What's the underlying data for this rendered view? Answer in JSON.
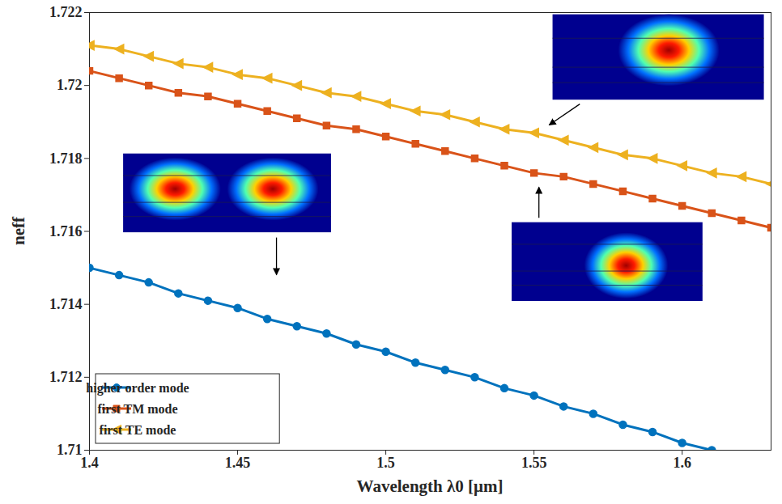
{
  "chart_data": {
    "type": "line",
    "xlabel": "Wavelength λ0 [μm]",
    "ylabel": "neff",
    "x": [
      1.4,
      1.41,
      1.42,
      1.43,
      1.44,
      1.45,
      1.46,
      1.47,
      1.48,
      1.49,
      1.5,
      1.51,
      1.52,
      1.53,
      1.54,
      1.55,
      1.56,
      1.57,
      1.58,
      1.59,
      1.6,
      1.61,
      1.62,
      1.63
    ],
    "xlim": [
      1.4,
      1.63
    ],
    "xticks": [
      1.4,
      1.45,
      1.5,
      1.55,
      1.6
    ],
    "ylim": [
      1.71,
      1.722
    ],
    "yticks": [
      1.71,
      1.712,
      1.714,
      1.716,
      1.718,
      1.72,
      1.722
    ],
    "grid": false,
    "legend": "lower left",
    "series": [
      {
        "name": "higher order mode",
        "color": "#0072BD",
        "marker": "circle",
        "values": [
          1.715,
          1.7148,
          1.7146,
          1.7143,
          1.7141,
          1.7139,
          1.7136,
          1.7134,
          1.7132,
          1.7129,
          1.7127,
          1.7124,
          1.7122,
          1.712,
          1.7117,
          1.7115,
          1.7112,
          1.711,
          1.7107,
          1.7105,
          1.7102,
          1.71,
          null,
          null
        ]
      },
      {
        "name": "first TM mode",
        "color": "#D95319",
        "marker": "square",
        "values": [
          1.7204,
          1.7202,
          1.72,
          1.7198,
          1.7197,
          1.7195,
          1.7193,
          1.7191,
          1.7189,
          1.7188,
          1.7186,
          1.7184,
          1.7182,
          1.718,
          1.7178,
          1.7176,
          1.7175,
          1.7173,
          1.7171,
          1.7169,
          1.7167,
          1.7165,
          1.7163,
          1.7161
        ]
      },
      {
        "name": "first TE mode",
        "color": "#EDB120",
        "marker": "triangle-left",
        "values": [
          1.7211,
          1.721,
          1.7208,
          1.7206,
          1.7205,
          1.7203,
          1.7202,
          1.72,
          1.7198,
          1.7197,
          1.7195,
          1.7193,
          1.7192,
          1.719,
          1.7188,
          1.7187,
          1.7185,
          1.7183,
          1.7181,
          1.718,
          1.7178,
          1.7176,
          1.7175,
          1.7173
        ]
      }
    ]
  }
}
